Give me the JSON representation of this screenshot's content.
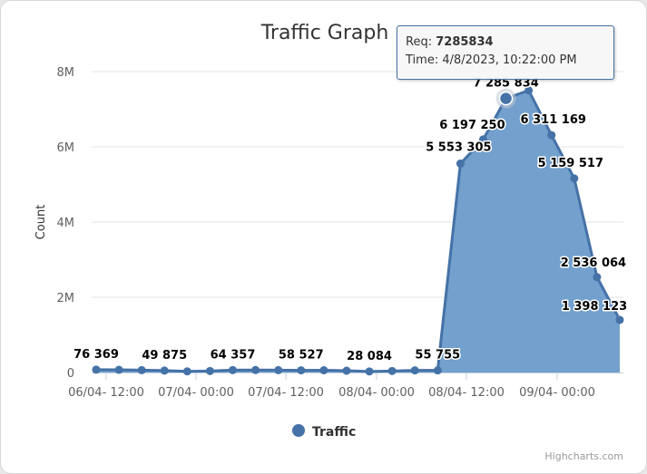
{
  "chart_data": {
    "type": "area",
    "title": "Traffic Graph",
    "ylabel": "Count",
    "xlabel": "",
    "ylim": [
      0,
      8000000
    ],
    "yticks": [
      {
        "value": 0,
        "label": "0"
      },
      {
        "value": 2000000,
        "label": "2M"
      },
      {
        "value": 4000000,
        "label": "4M"
      },
      {
        "value": 6000000,
        "label": "6M"
      },
      {
        "value": 8000000,
        "label": "8M"
      }
    ],
    "xtick_labels": [
      "06/04- 12:00",
      "07/04- 00:00",
      "07/04- 12:00",
      "08/04- 00:00",
      "08/04- 12:00",
      "09/04- 00:00"
    ],
    "grid": true,
    "legend_position": "bottom",
    "series": [
      {
        "name": "Traffic",
        "color": "#4572a7",
        "fill": "#6b9bc9",
        "values": [
          76369,
          72000,
          63000,
          49875,
          30000,
          40000,
          64357,
          66000,
          62000,
          58527,
          60000,
          48000,
          28084,
          40000,
          55755,
          55755,
          5553305,
          6197250,
          7285834,
          7500000,
          6311169,
          5159517,
          2536064,
          1398123
        ]
      }
    ],
    "data_labels": [
      {
        "index": 0,
        "text": "76 369"
      },
      {
        "index": 3,
        "text": "49 875"
      },
      {
        "index": 6,
        "text": "64 357"
      },
      {
        "index": 9,
        "text": "58 527"
      },
      {
        "index": 12,
        "text": "28 084"
      },
      {
        "index": 15,
        "text": "55 755"
      },
      {
        "index": 16,
        "text": "5 553 305"
      },
      {
        "index": 17,
        "text": "6 197 250"
      },
      {
        "index": 18,
        "text": "7 285 834"
      },
      {
        "index": 20,
        "text": "6 311 169"
      },
      {
        "index": 21,
        "text": "5 159 517"
      },
      {
        "index": 22,
        "text": "2 536 064"
      },
      {
        "index": 23,
        "text": "1 398 123"
      }
    ],
    "highlight_index": 18
  },
  "tooltip": {
    "req_label": "Req:",
    "req_value": "7285834",
    "time_label": "Time:",
    "time_value": "4/8/2023, 10:22:00 PM"
  },
  "credits": "Highcharts.com"
}
